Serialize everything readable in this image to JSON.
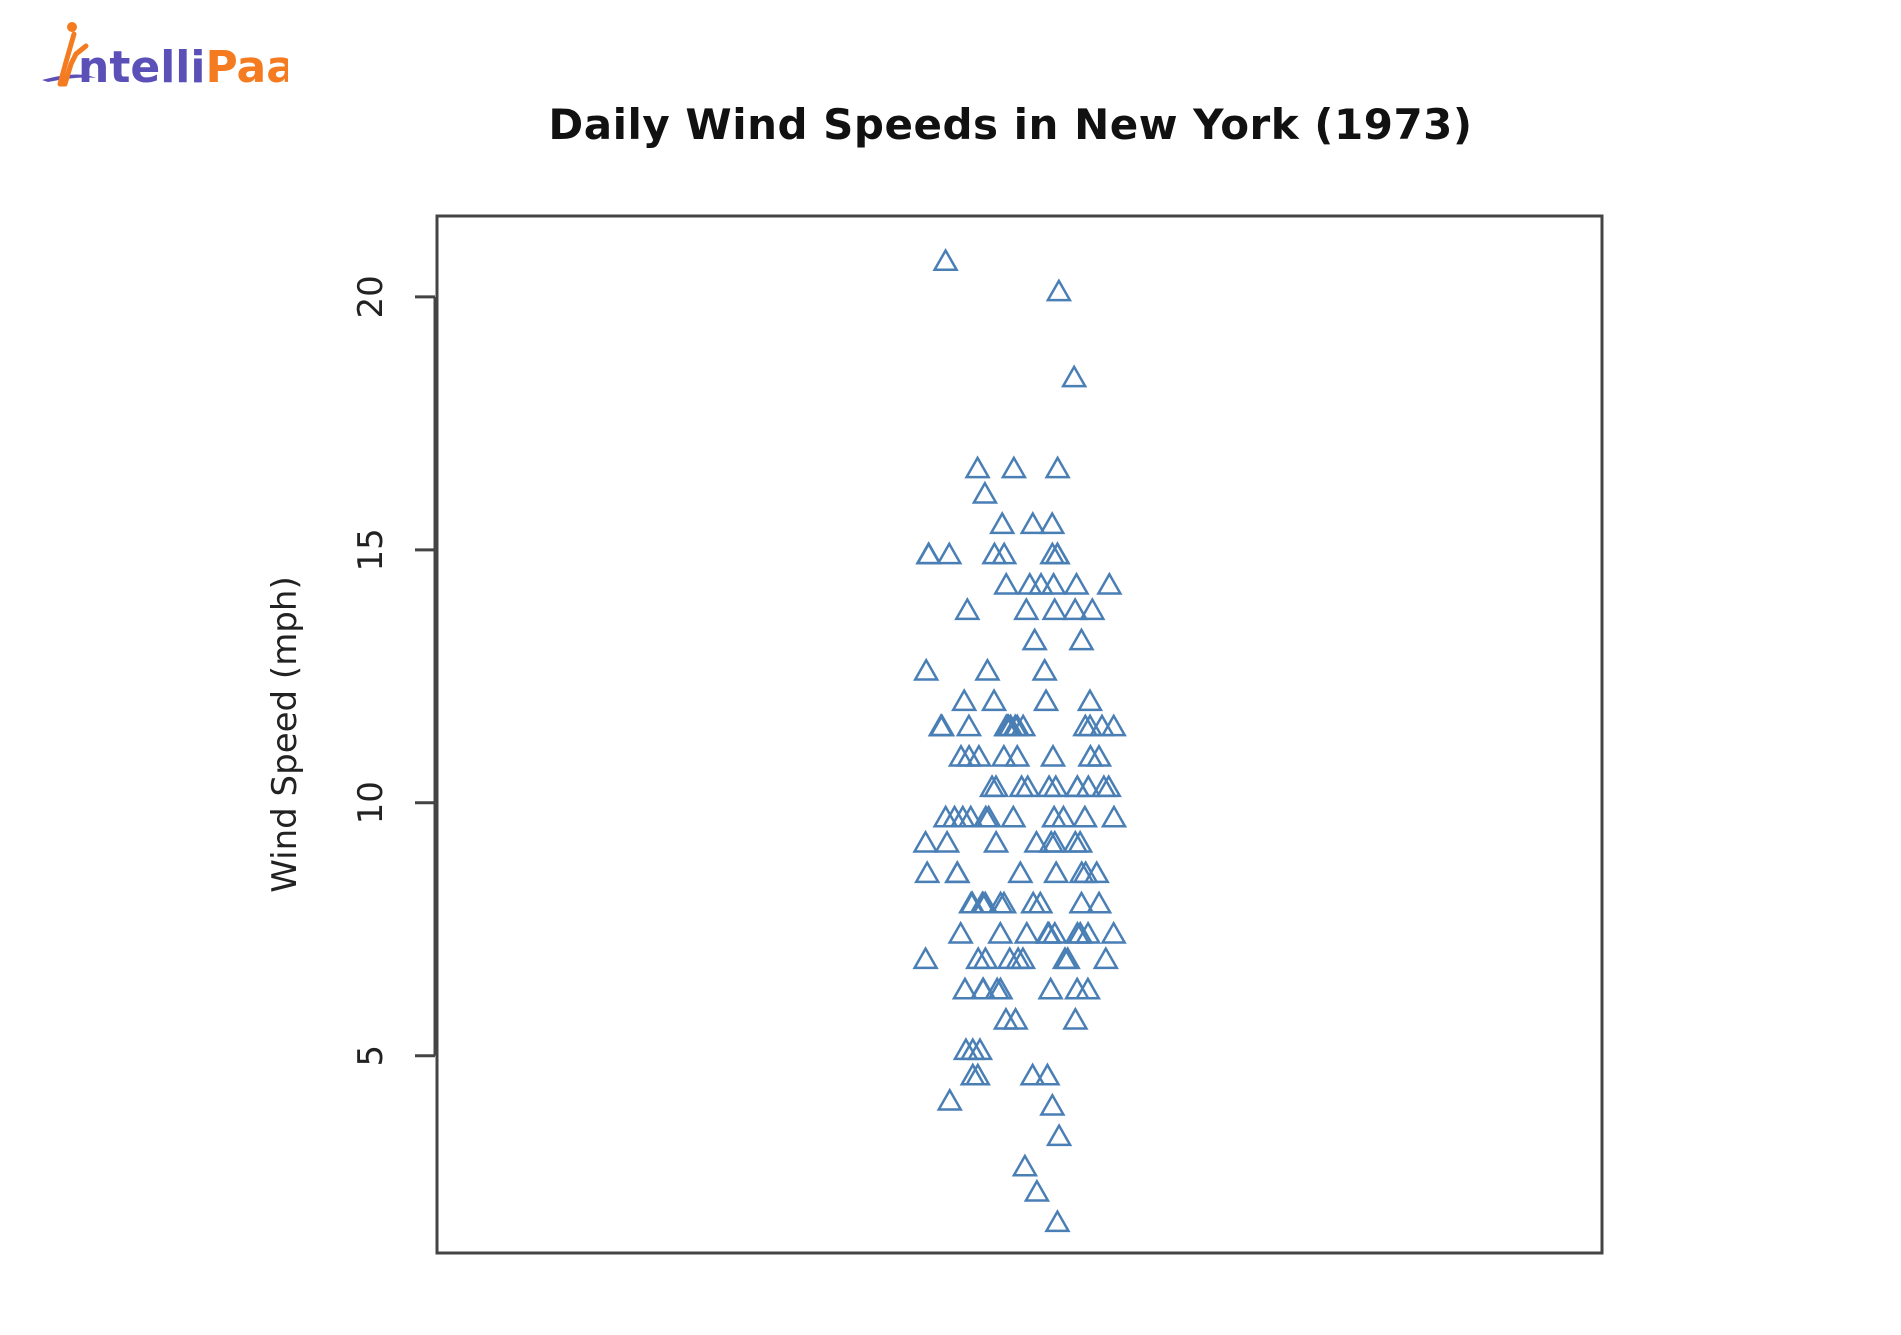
{
  "logo": {
    "text_first": "ntelli",
    "text_second": "Paat",
    "colors": {
      "primary": "#5b4fb8",
      "accent": "#f47b20"
    }
  },
  "chart_data": {
    "type": "scatter",
    "title": "Daily Wind Speeds in New York (1973)",
    "ylabel": "Wind Speed (mph)",
    "xlabel": "",
    "ylim": [
      1.1,
      21.6
    ],
    "yticks": [
      5,
      10,
      15,
      20
    ],
    "grid": false,
    "marker": "open-triangle",
    "marker_color": "#4a7fb5",
    "y": [
      7.4,
      8.0,
      12.6,
      11.5,
      14.3,
      14.9,
      8.6,
      13.8,
      20.1,
      8.6,
      6.9,
      9.7,
      9.2,
      10.9,
      13.2,
      11.5,
      12.0,
      18.4,
      11.5,
      9.7,
      9.7,
      16.6,
      9.7,
      12.0,
      16.6,
      14.9,
      8.0,
      12.0,
      14.9,
      5.7,
      7.4,
      8.6,
      9.7,
      16.1,
      9.2,
      8.6,
      14.3,
      9.7,
      6.9,
      13.8,
      11.5,
      10.9,
      9.2,
      8.0,
      13.8,
      11.5,
      14.9,
      20.7,
      9.2,
      11.5,
      10.3,
      6.3,
      1.7,
      4.6,
      6.3,
      8.0,
      8.0,
      10.3,
      11.5,
      14.9,
      8.0,
      4.1,
      9.2,
      9.2,
      10.9,
      4.6,
      10.9,
      5.1,
      6.3,
      5.7,
      7.4,
      8.6,
      14.3,
      14.9,
      14.9,
      14.3,
      6.9,
      10.3,
      6.3,
      5.1,
      11.5,
      6.9,
      9.7,
      11.5,
      8.6,
      8.0,
      8.6,
      12.0,
      7.4,
      7.4,
      7.4,
      9.2,
      6.9,
      13.8,
      7.4,
      6.9,
      7.4,
      4.6,
      4.0,
      10.3,
      8.0,
      8.6,
      11.5,
      11.5,
      11.5,
      9.7,
      11.5,
      10.3,
      6.3,
      7.4,
      10.9,
      10.3,
      15.5,
      14.3,
      12.6,
      9.7,
      3.4,
      8.0,
      5.7,
      9.7,
      2.3,
      6.3,
      6.3,
      6.9,
      5.1,
      2.8,
      4.6,
      7.4,
      15.5,
      10.9,
      10.3,
      10.9,
      9.7,
      14.9,
      15.5,
      6.3,
      10.9,
      11.5,
      6.9,
      13.8,
      10.3,
      10.3,
      8.0,
      12.6,
      9.2,
      10.3,
      10.3,
      16.6,
      6.9,
      13.2,
      14.3,
      8.0,
      11.5
    ]
  }
}
